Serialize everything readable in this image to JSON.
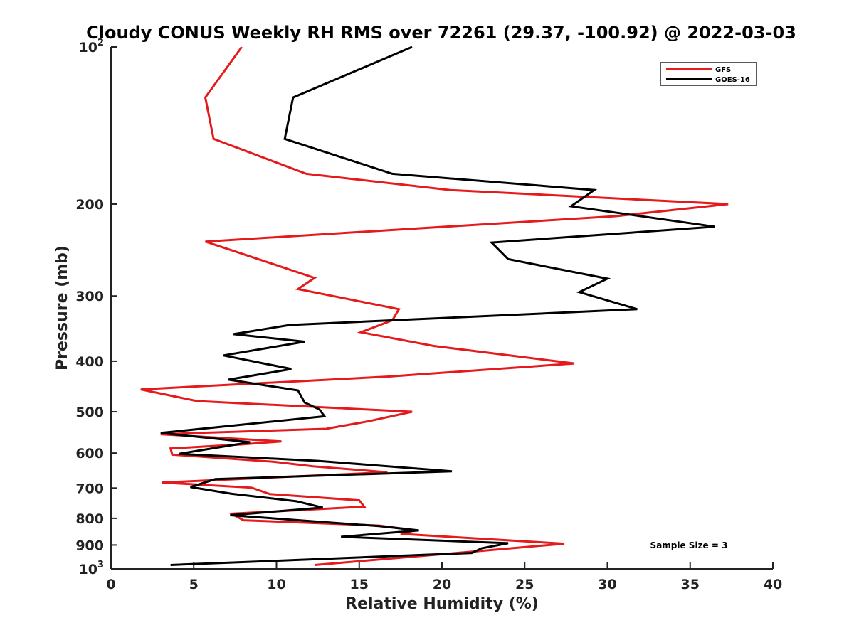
{
  "chart_data": {
    "type": "line",
    "title": "Cloudy CONUS Weekly RH RMS over 72261 (29.37, -100.92) @ 2022-03-03",
    "xlabel": "Relative Humidity (%)",
    "ylabel": "Pressure (mb)",
    "xlim": [
      0,
      40
    ],
    "ylim": [
      100,
      1000
    ],
    "y_scale": "log",
    "y_reversed": true,
    "x_ticks": [
      "0",
      "5",
      "10",
      "15",
      "20",
      "25",
      "30",
      "35",
      "40"
    ],
    "y_ticks": [
      {
        "value": 100,
        "base": "10",
        "exp": "2"
      },
      {
        "value": 200,
        "label": "200"
      },
      {
        "value": 300,
        "label": "300"
      },
      {
        "value": 400,
        "label": "400"
      },
      {
        "value": 500,
        "label": "500"
      },
      {
        "value": 600,
        "label": "600"
      },
      {
        "value": 700,
        "label": "700"
      },
      {
        "value": 800,
        "label": "800"
      },
      {
        "value": 900,
        "label": "900"
      },
      {
        "value": 1000,
        "base": "10",
        "exp": "3"
      }
    ],
    "grid": false,
    "legend_position": "top-right",
    "annotation": "Sample Size = 3",
    "series": [
      {
        "name": "GFS",
        "color": "#e41a1c",
        "points": [
          [
            7.9,
            100
          ],
          [
            5.7,
            125
          ],
          [
            6.2,
            150
          ],
          [
            11.8,
            175
          ],
          [
            20.5,
            188
          ],
          [
            37.3,
            200
          ],
          [
            30.5,
            211
          ],
          [
            5.7,
            236
          ],
          [
            9.7,
            260
          ],
          [
            12.3,
            277
          ],
          [
            11.3,
            291
          ],
          [
            17.4,
            318
          ],
          [
            17.0,
            334
          ],
          [
            15.1,
            352
          ],
          [
            19.5,
            374
          ],
          [
            28.0,
            404
          ],
          [
            16.8,
            428
          ],
          [
            1.8,
            453
          ],
          [
            5.2,
            477
          ],
          [
            18.2,
            500
          ],
          [
            15.6,
            521
          ],
          [
            13.0,
            539
          ],
          [
            3.0,
            552
          ],
          [
            10.3,
            570
          ],
          [
            8.0,
            577
          ],
          [
            3.6,
            588
          ],
          [
            3.7,
            604
          ],
          [
            9.8,
            623
          ],
          [
            12.2,
            636
          ],
          [
            16.7,
            653
          ],
          [
            3.1,
            683
          ],
          [
            8.5,
            699
          ],
          [
            9.6,
            719
          ],
          [
            15.0,
            739
          ],
          [
            15.3,
            760
          ],
          [
            7.3,
            784
          ],
          [
            8.0,
            807
          ],
          [
            16.2,
            826
          ],
          [
            18.4,
            843
          ],
          [
            17.5,
            857
          ],
          [
            27.4,
            895
          ],
          [
            21.6,
            928
          ],
          [
            12.3,
            983
          ]
        ]
      },
      {
        "name": "GOES-16",
        "color": "#000000",
        "points": [
          [
            18.2,
            100
          ],
          [
            11.0,
            125
          ],
          [
            10.5,
            150
          ],
          [
            17.0,
            175
          ],
          [
            29.2,
            188
          ],
          [
            27.8,
            202
          ],
          [
            36.5,
            221
          ],
          [
            23.0,
            237
          ],
          [
            24.0,
            255
          ],
          [
            30.0,
            278
          ],
          [
            28.3,
            295
          ],
          [
            31.8,
            318
          ],
          [
            10.8,
            341
          ],
          [
            7.4,
            355
          ],
          [
            11.7,
            367
          ],
          [
            6.8,
            390
          ],
          [
            10.9,
            414
          ],
          [
            7.1,
            434
          ],
          [
            11.3,
            455
          ],
          [
            11.7,
            480
          ],
          [
            12.6,
            495
          ],
          [
            12.9,
            510
          ],
          [
            3.0,
            549
          ],
          [
            8.4,
            572
          ],
          [
            4.1,
            602
          ],
          [
            12.5,
            621
          ],
          [
            20.6,
            650
          ],
          [
            6.3,
            673
          ],
          [
            4.8,
            697
          ],
          [
            7.3,
            718
          ],
          [
            11.2,
            742
          ],
          [
            12.8,
            763
          ],
          [
            7.2,
            789
          ],
          [
            16.2,
            828
          ],
          [
            18.6,
            844
          ],
          [
            13.9,
            868
          ],
          [
            24.0,
            893
          ],
          [
            22.4,
            913
          ],
          [
            21.8,
            932
          ],
          [
            3.6,
            983
          ]
        ]
      }
    ]
  }
}
